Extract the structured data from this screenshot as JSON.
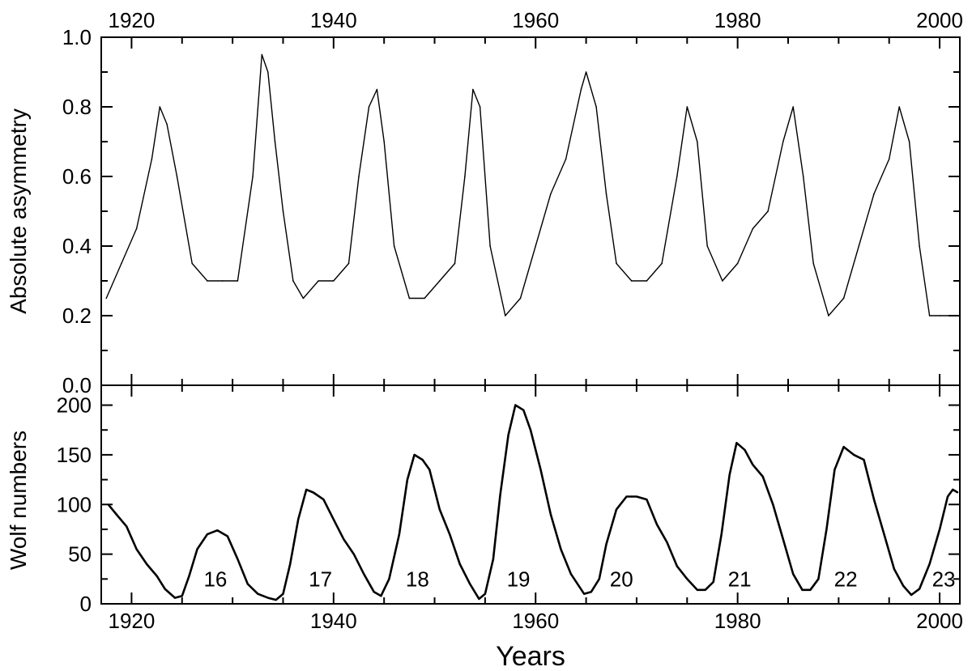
{
  "chart_data": [
    {
      "type": "line",
      "panel": "top",
      "title": "",
      "xlabel": "",
      "ylabel": "Absolute asymmetry",
      "xlim": [
        1917,
        2002
      ],
      "ylim": [
        0,
        1
      ],
      "x_ticks": [
        1920,
        1940,
        1960,
        1980,
        2000
      ],
      "x_tick_labels": [
        "1920",
        "1940",
        "1960",
        "1980",
        "2000"
      ],
      "x_tick_labels_position": "top",
      "y_ticks": [
        0,
        0.2,
        0.4,
        0.6,
        0.8,
        1.0
      ],
      "y_tick_labels": [
        "0.0",
        "0.2",
        "0.4",
        "0.6",
        "0.8",
        "1.0"
      ],
      "grid": false,
      "legend": "none",
      "line_color": "#000000",
      "series": [
        {
          "x": [
            1917.5,
            1919.0,
            1920.5,
            1922.0,
            1922.8,
            1923.5,
            1924.5,
            1926.0,
            1927.5,
            1929.0,
            1930.5,
            1932.0,
            1932.9,
            1933.5,
            1934.2,
            1935.0,
            1936.0,
            1937.0,
            1938.5,
            1940.0,
            1941.5,
            1942.5,
            1943.5,
            1944.3,
            1945.0,
            1946.0,
            1947.5,
            1949.0,
            1950.5,
            1952.0,
            1953.0,
            1953.8,
            1954.5,
            1955.5,
            1957.0,
            1958.5,
            1960.0,
            1961.5,
            1963.0,
            1964.5,
            1965.0,
            1966.0,
            1967.0,
            1968.0,
            1969.5,
            1971.0,
            1972.5,
            1974.0,
            1975.0,
            1976.0,
            1977.0,
            1978.5,
            1980.0,
            1981.5,
            1983.0,
            1984.5,
            1985.5,
            1986.5,
            1987.5,
            1989.0,
            1990.5,
            1992.0,
            1993.5,
            1995.0,
            1996.0,
            1997.0,
            1998.0,
            1999.0,
            2000.0,
            2001.0
          ],
          "values": [
            0.25,
            0.35,
            0.45,
            0.65,
            0.8,
            0.75,
            0.6,
            0.35,
            0.3,
            0.3,
            0.3,
            0.6,
            0.95,
            0.9,
            0.7,
            0.5,
            0.3,
            0.25,
            0.3,
            0.3,
            0.35,
            0.6,
            0.8,
            0.85,
            0.7,
            0.4,
            0.25,
            0.25,
            0.3,
            0.35,
            0.6,
            0.85,
            0.8,
            0.4,
            0.2,
            0.25,
            0.4,
            0.55,
            0.65,
            0.85,
            0.9,
            0.8,
            0.55,
            0.35,
            0.3,
            0.3,
            0.35,
            0.6,
            0.8,
            0.7,
            0.4,
            0.3,
            0.35,
            0.45,
            0.5,
            0.7,
            0.8,
            0.6,
            0.35,
            0.2,
            0.25,
            0.4,
            0.55,
            0.65,
            0.8,
            0.7,
            0.4,
            0.2,
            0.2,
            0.2
          ]
        }
      ]
    },
    {
      "type": "line",
      "panel": "bottom",
      "title": "",
      "xlabel": "Years",
      "ylabel": "Wolf numbers",
      "xlim": [
        1917,
        2002
      ],
      "ylim": [
        0,
        220
      ],
      "x_ticks": [
        1920,
        1940,
        1960,
        1980,
        2000
      ],
      "x_tick_labels": [
        "1920",
        "1940",
        "1960",
        "1980",
        "2000"
      ],
      "y_ticks": [
        0,
        50,
        100,
        150,
        200
      ],
      "y_tick_labels": [
        "0",
        "50",
        "100",
        "150",
        "200"
      ],
      "grid": false,
      "legend": "none",
      "line_color": "#000000",
      "series": [
        {
          "x": [
            1917.7,
            1918.5,
            1919.5,
            1920.5,
            1921.5,
            1922.5,
            1923.3,
            1924.3,
            1925.0,
            1925.7,
            1926.5,
            1927.5,
            1928.5,
            1929.5,
            1930.5,
            1931.5,
            1932.5,
            1933.5,
            1934.3,
            1935.0,
            1935.7,
            1936.5,
            1937.3,
            1938.0,
            1939.0,
            1940.0,
            1941.0,
            1942.0,
            1943.0,
            1944.0,
            1944.7,
            1945.5,
            1946.5,
            1947.3,
            1948.0,
            1948.8,
            1949.5,
            1950.5,
            1951.5,
            1952.5,
            1953.5,
            1954.4,
            1955.0,
            1955.8,
            1956.5,
            1957.3,
            1958.0,
            1958.8,
            1959.5,
            1960.5,
            1961.5,
            1962.5,
            1963.5,
            1964.8,
            1965.5,
            1966.3,
            1967.0,
            1968.0,
            1969.0,
            1970.0,
            1971.0,
            1972.0,
            1973.0,
            1974.0,
            1975.0,
            1976.0,
            1976.8,
            1977.6,
            1978.4,
            1979.2,
            1979.9,
            1980.7,
            1981.5,
            1982.5,
            1983.5,
            1984.5,
            1985.5,
            1986.4,
            1987.2,
            1988.0,
            1988.8,
            1989.6,
            1990.5,
            1991.5,
            1992.5,
            1993.5,
            1994.5,
            1995.5,
            1996.4,
            1997.2,
            1998.0,
            1999.0,
            2000.0,
            2000.8,
            2001.3,
            2001.8
          ],
          "values": [
            100,
            90,
            78,
            55,
            40,
            28,
            15,
            6,
            8,
            28,
            55,
            70,
            74,
            68,
            45,
            20,
            10,
            6,
            4,
            10,
            40,
            85,
            115,
            112,
            105,
            85,
            65,
            50,
            30,
            12,
            8,
            25,
            70,
            125,
            150,
            145,
            135,
            95,
            70,
            40,
            20,
            5,
            10,
            45,
            110,
            170,
            200,
            195,
            175,
            135,
            90,
            55,
            30,
            10,
            12,
            25,
            60,
            95,
            108,
            108,
            105,
            80,
            62,
            38,
            25,
            14,
            14,
            22,
            70,
            130,
            162,
            155,
            140,
            128,
            100,
            65,
            30,
            14,
            14,
            25,
            75,
            135,
            158,
            150,
            145,
            105,
            70,
            35,
            18,
            9,
            15,
            40,
            75,
            108,
            115,
            112
          ]
        }
      ],
      "annotations": [
        "16",
        "17",
        "18",
        "19",
        "20",
        "21",
        "22",
        "23"
      ]
    }
  ]
}
